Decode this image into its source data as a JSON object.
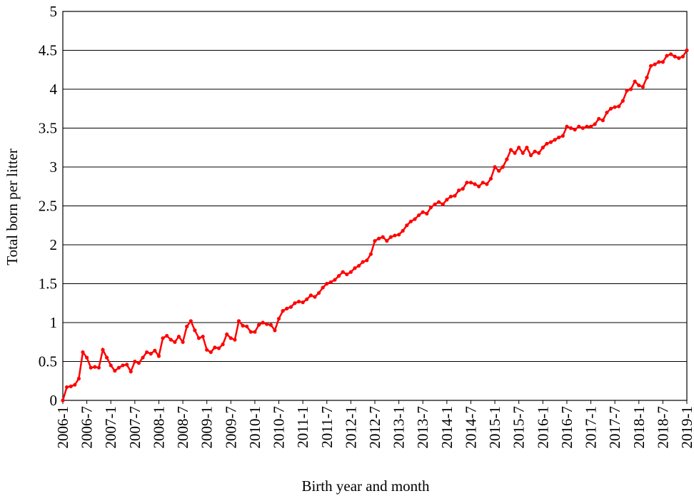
{
  "chart_data": {
    "type": "line",
    "xlabel": "Birth year and month",
    "ylabel": "Total born per litter",
    "categories": [
      "2006-1",
      null,
      null,
      null,
      null,
      null,
      "2006-7",
      null,
      null,
      null,
      null,
      null,
      "2007-1",
      null,
      null,
      null,
      null,
      null,
      "2007-7",
      null,
      null,
      null,
      null,
      null,
      "2008-1",
      null,
      null,
      null,
      null,
      null,
      "2008-7",
      null,
      null,
      null,
      null,
      null,
      "2009-1",
      null,
      null,
      null,
      null,
      null,
      "2009-7",
      null,
      null,
      null,
      null,
      null,
      "2010-1",
      null,
      null,
      null,
      null,
      null,
      "2010-7",
      null,
      null,
      null,
      null,
      null,
      "2011-1",
      null,
      null,
      null,
      null,
      null,
      "2011-7",
      null,
      null,
      null,
      null,
      null,
      "2012-1",
      null,
      null,
      null,
      null,
      null,
      "2012-7",
      null,
      null,
      null,
      null,
      null,
      "2013-1",
      null,
      null,
      null,
      null,
      null,
      "2013-7",
      null,
      null,
      null,
      null,
      null,
      "2014-1",
      null,
      null,
      null,
      null,
      null,
      "2014-7",
      null,
      null,
      null,
      null,
      null,
      "2015-1",
      null,
      null,
      null,
      null,
      null,
      "2015-7",
      null,
      null,
      null,
      null,
      null,
      "2016-1",
      null,
      null,
      null,
      null,
      null,
      "2016-7",
      null,
      null,
      null,
      null,
      null,
      "2017-1",
      null,
      null,
      null,
      null,
      null,
      "2017-7",
      null,
      null,
      null,
      null,
      null,
      "2018-1",
      null,
      null,
      null,
      null,
      null,
      "2018-7",
      null,
      null,
      null,
      null,
      null,
      "2019-1"
    ],
    "values": [
      0,
      0.17,
      0.18,
      0.2,
      0.28,
      0.62,
      0.55,
      0.42,
      0.43,
      0.42,
      0.65,
      0.55,
      0.45,
      0.38,
      0.42,
      0.45,
      0.46,
      0.37,
      0.5,
      0.48,
      0.55,
      0.62,
      0.6,
      0.64,
      0.57,
      0.8,
      0.83,
      0.78,
      0.75,
      0.82,
      0.75,
      0.95,
      1.02,
      0.9,
      0.8,
      0.82,
      0.65,
      0.62,
      0.68,
      0.67,
      0.72,
      0.85,
      0.8,
      0.78,
      1.02,
      0.96,
      0.95,
      0.88,
      0.88,
      0.97,
      1.0,
      0.98,
      0.97,
      0.9,
      1.05,
      1.15,
      1.18,
      1.2,
      1.25,
      1.27,
      1.26,
      1.3,
      1.35,
      1.33,
      1.38,
      1.45,
      1.5,
      1.52,
      1.55,
      1.6,
      1.65,
      1.62,
      1.65,
      1.7,
      1.73,
      1.78,
      1.8,
      1.88,
      2.05,
      2.08,
      2.1,
      2.05,
      2.1,
      2.12,
      2.13,
      2.18,
      2.25,
      2.3,
      2.33,
      2.38,
      2.42,
      2.4,
      2.48,
      2.52,
      2.55,
      2.52,
      2.58,
      2.62,
      2.63,
      2.7,
      2.72,
      2.8,
      2.8,
      2.78,
      2.75,
      2.8,
      2.78,
      2.85,
      3.0,
      2.95,
      3.0,
      3.1,
      3.22,
      3.18,
      3.25,
      3.18,
      3.25,
      3.15,
      3.2,
      3.18,
      3.25,
      3.3,
      3.32,
      3.35,
      3.38,
      3.4,
      3.52,
      3.5,
      3.48,
      3.52,
      3.5,
      3.52,
      3.52,
      3.55,
      3.62,
      3.6,
      3.7,
      3.75,
      3.77,
      3.78,
      3.85,
      3.98,
      4.0,
      4.1,
      4.05,
      4.03,
      4.15,
      4.3,
      4.32,
      4.35,
      4.35,
      4.43,
      4.45,
      4.42,
      4.4,
      4.42,
      4.5
    ],
    "color": "#ff0000",
    "ylim": [
      0,
      5
    ],
    "yticks": [
      0,
      0.5,
      1,
      1.5,
      2,
      2.5,
      3,
      3.5,
      4,
      4.5,
      5
    ],
    "grid": true
  }
}
